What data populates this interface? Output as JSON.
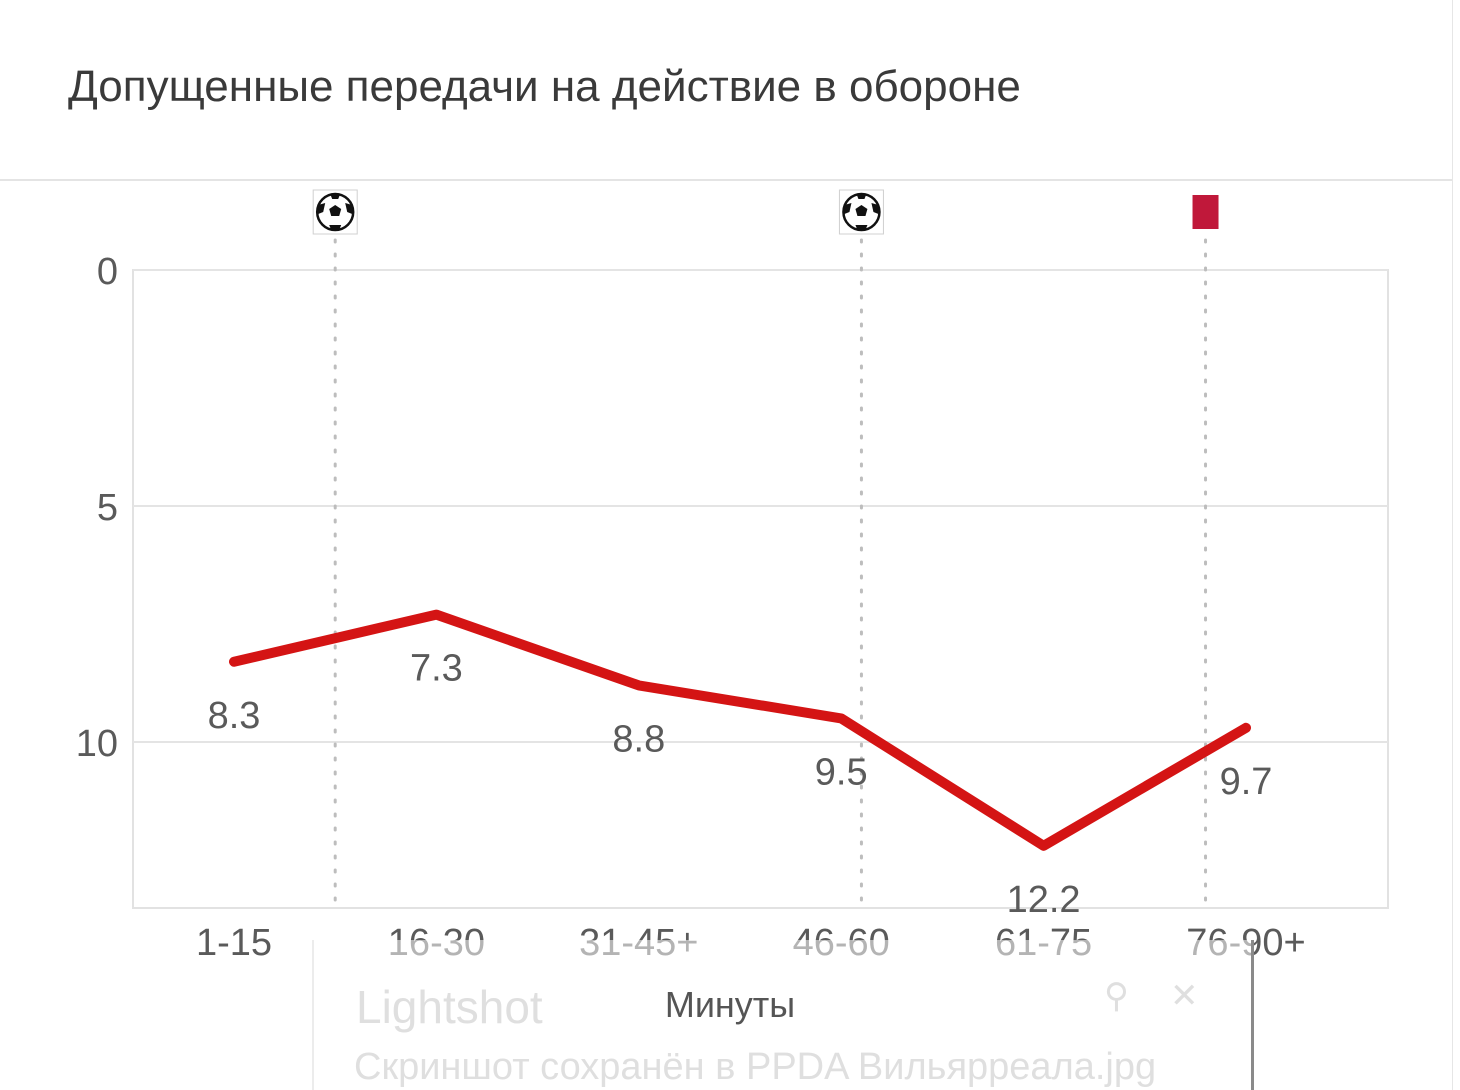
{
  "title": "Допущенные передачи на действие в обороне",
  "chart_data": {
    "type": "line",
    "categories": [
      "1-15",
      "16-30",
      "31-45+",
      "46-60",
      "61-75",
      "76-90+"
    ],
    "values": [
      8.3,
      7.3,
      8.8,
      9.5,
      12.2,
      9.7
    ],
    "value_labels": [
      "8.3",
      "7.3",
      "8.8",
      "9.5",
      "12.2",
      "9.7"
    ],
    "xlabel": "Минуты",
    "ylabel": "",
    "ylim": [
      0,
      13.5
    ],
    "y_inverted": true,
    "yticks": [
      0,
      5,
      10
    ],
    "ytick_labels": [
      "0",
      "5",
      "10"
    ],
    "grid": true,
    "line_color": "#d41414",
    "events": [
      {
        "type": "goal",
        "icon": "soccer-ball-icon",
        "at": 1.5
      },
      {
        "type": "goal",
        "icon": "soccer-ball-icon",
        "at": 4.1
      },
      {
        "type": "red-card",
        "icon": "red-card-icon",
        "at": 5.8,
        "color": "#c0183a"
      }
    ]
  },
  "toast": {
    "app_name": "Lightshot",
    "message": "Скриншот сохранён в PPDA Вильярреала.jpg"
  }
}
